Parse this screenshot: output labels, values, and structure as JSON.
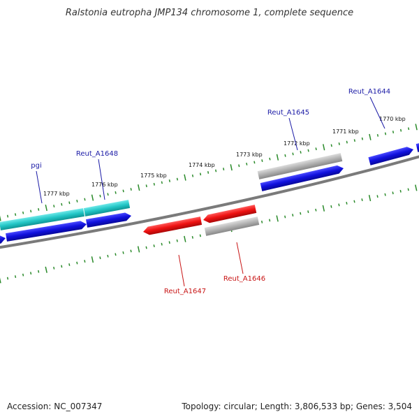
{
  "title": "Ralstonia eutropha JMP134 chromosome 1, complete sequence",
  "footer": {
    "accession": "Accession: NC_007347",
    "topology": "Topology: circular; Length: 3,806,533 bp; Genes: 3,504"
  },
  "colors": {
    "background": "#ffffff",
    "backbone": "#7a7a7a",
    "ticks": "#2a8a2a",
    "label_forward": "#1a1aa6",
    "label_reverse": "#c81414",
    "gene_blue": "#1010dd",
    "gene_cyan": "#22c6c6",
    "gene_red": "#ee1111",
    "gene_gray": "#b2b2b2"
  },
  "ruler_labels": [
    "1777 kbp",
    "1776 kbp",
    "1775 kbp",
    "1774 kbp",
    "1773 kbp",
    "1772 kbp",
    "1771 kbp",
    "1770 kbp"
  ],
  "gene_labels": [
    {
      "text": "pgi",
      "strand": "forward"
    },
    {
      "text": "Reut_A1648",
      "strand": "forward"
    },
    {
      "text": "Reut_A1645",
      "strand": "forward"
    },
    {
      "text": "Reut_A1644",
      "strand": "forward"
    },
    {
      "text": "Reut_A1647",
      "strand": "reverse"
    },
    {
      "text": "Reut_A1646",
      "strand": "reverse"
    }
  ]
}
